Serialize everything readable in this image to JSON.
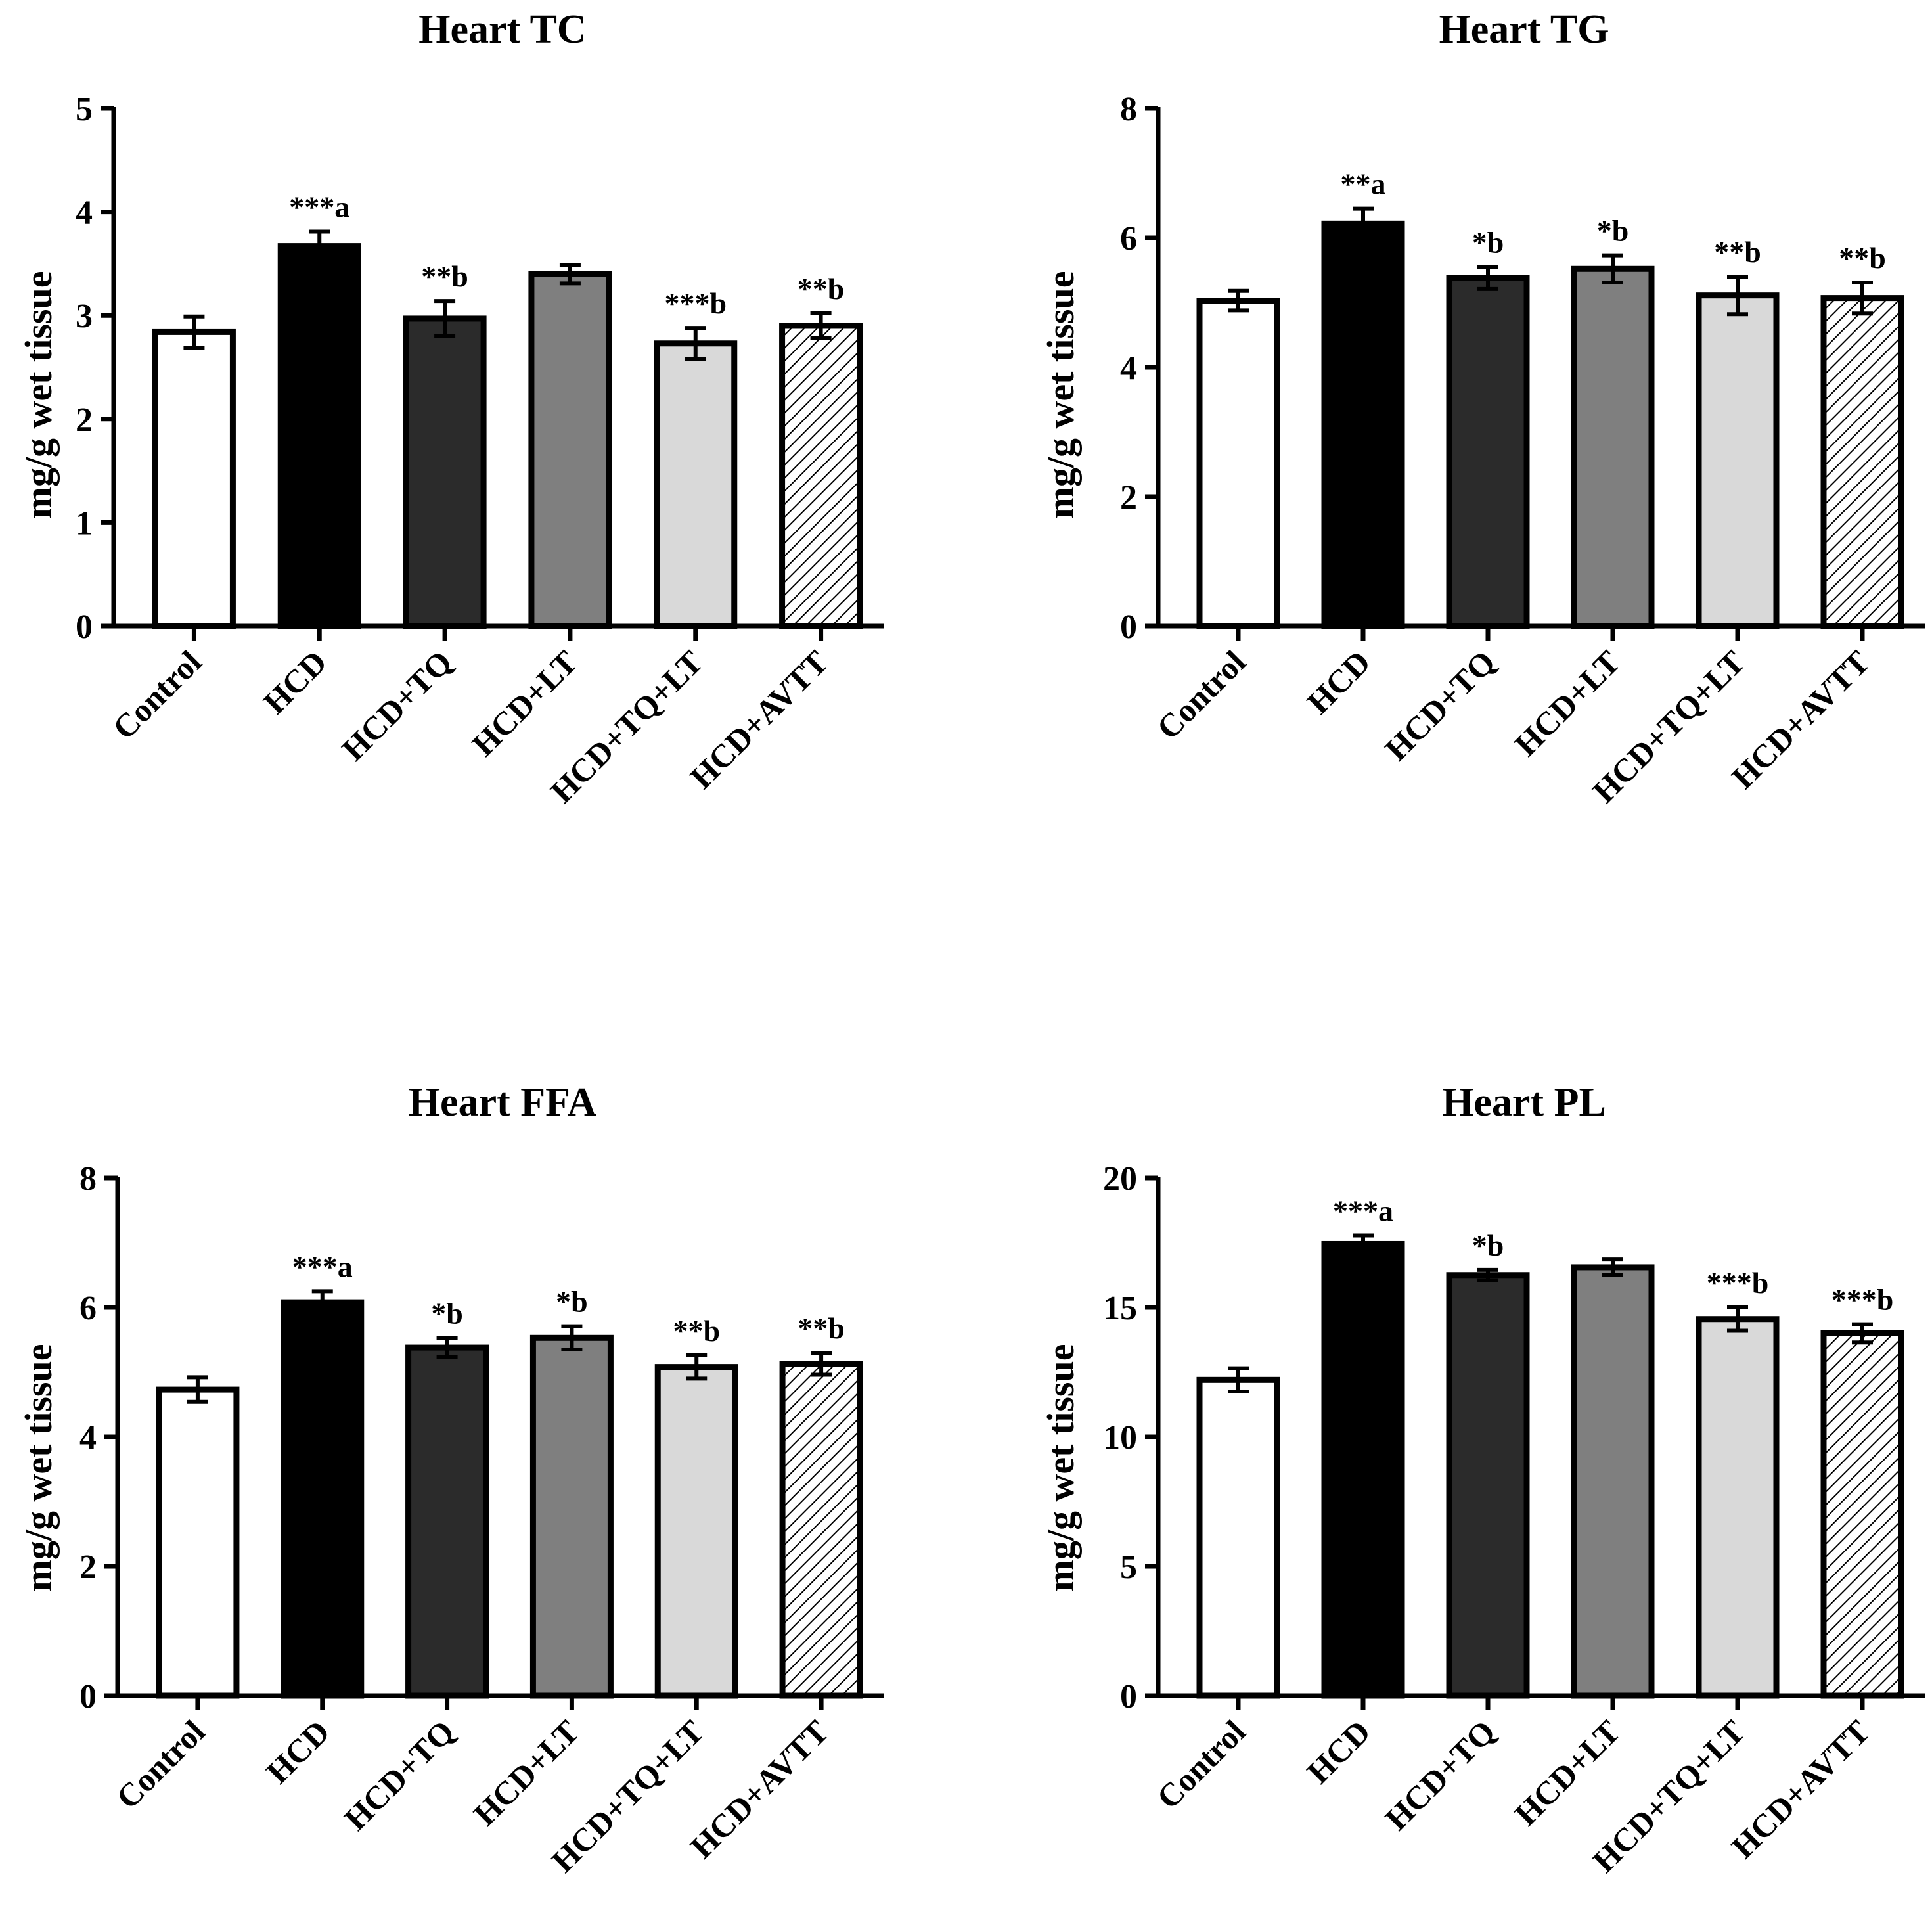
{
  "colors": {
    "axis": "#000000",
    "bar_outline": "#000000",
    "fills": [
      "#ffffff",
      "#000000",
      "#2b2b2b",
      "#7f7f7f",
      "#d9d9d9",
      "hatch"
    ]
  },
  "chart_data": [
    {
      "type": "bar",
      "title": "Heart TC",
      "xlabel": "",
      "ylabel": "mg/g wet tissue",
      "ylim": [
        0,
        5
      ],
      "yticks": [
        0,
        1,
        2,
        3,
        4,
        5
      ],
      "categories": [
        "Control",
        "HCD",
        "HCD+TQ",
        "HCD+LT",
        "HCD+TQ+LT",
        "HCD+AVTT"
      ],
      "values": [
        2.84,
        3.67,
        2.97,
        3.4,
        2.73,
        2.9
      ],
      "errors": [
        0.15,
        0.14,
        0.17,
        0.09,
        0.15,
        0.12
      ],
      "annotations": [
        "",
        "***a",
        "**b",
        "",
        "***b",
        "**b"
      ]
    },
    {
      "type": "bar",
      "title": "Heart TG",
      "xlabel": "",
      "ylabel": "mg/g wet tissue",
      "ylim": [
        0,
        8
      ],
      "yticks": [
        0,
        2,
        4,
        6,
        8
      ],
      "categories": [
        "Control",
        "HCD",
        "HCD+TQ",
        "HCD+LT",
        "HCD+TQ+LT",
        "HCD+AVTT"
      ],
      "values": [
        5.03,
        6.22,
        5.38,
        5.52,
        5.11,
        5.07
      ],
      "errors": [
        0.15,
        0.23,
        0.17,
        0.21,
        0.29,
        0.24
      ],
      "annotations": [
        "",
        "**a",
        "*b",
        "*b",
        "**b",
        "**b"
      ]
    },
    {
      "type": "bar",
      "title": "Heart FFA",
      "xlabel": "",
      "ylabel": "mg/g wet tissue",
      "ylim": [
        0,
        8
      ],
      "yticks": [
        0,
        2,
        4,
        6,
        8
      ],
      "categories": [
        "Control",
        "HCD",
        "HCD+TQ",
        "HCD+LT",
        "HCD+TQ+LT",
        "HCD+AVTT"
      ],
      "values": [
        4.73,
        6.08,
        5.38,
        5.53,
        5.08,
        5.13
      ],
      "errors": [
        0.19,
        0.17,
        0.15,
        0.18,
        0.18,
        0.17
      ],
      "annotations": [
        "",
        "***a",
        "*b",
        "*b",
        "**b",
        "**b"
      ]
    },
    {
      "type": "bar",
      "title": "Heart PL",
      "xlabel": "",
      "ylabel": "mg/g wet tissue",
      "ylim": [
        0,
        20
      ],
      "yticks": [
        0,
        5,
        10,
        15,
        20
      ],
      "categories": [
        "Control",
        "HCD",
        "HCD+TQ",
        "HCD+LT",
        "HCD+TQ+LT",
        "HCD+AVTT"
      ],
      "values": [
        12.2,
        17.45,
        16.25,
        16.55,
        14.55,
        14.0
      ],
      "errors": [
        0.45,
        0.33,
        0.2,
        0.3,
        0.45,
        0.35
      ],
      "annotations": [
        "",
        "***a",
        "*b",
        "",
        "***b",
        "***b"
      ]
    }
  ]
}
